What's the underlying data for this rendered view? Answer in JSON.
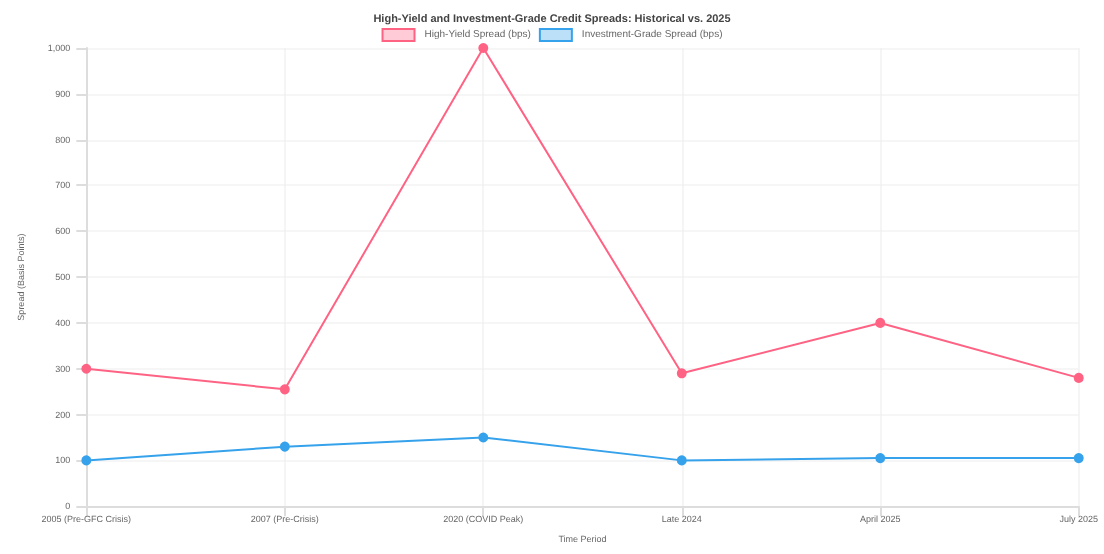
{
  "chart_data": {
    "type": "line",
    "title": "High-Yield and Investment-Grade Credit Spreads: Historical vs. 2025",
    "xlabel": "Time Period",
    "ylabel": "Spread (Basis Points)",
    "categories": [
      "2005 (Pre-GFC Crisis)",
      "2007 (Pre-Crisis)",
      "2020 (COVID Peak)",
      "Late 2024",
      "April 2025",
      "July 2025"
    ],
    "series": [
      {
        "name": "High-Yield Spread (bps)",
        "color": "#ff6384",
        "values": [
          300,
          255,
          1000,
          290,
          400,
          280
        ]
      },
      {
        "name": "Investment-Grade Spread (bps)",
        "color": "#36a2eb",
        "values": [
          100,
          130,
          150,
          100,
          105,
          105
        ]
      }
    ],
    "ylim": [
      0,
      1000
    ],
    "yticks": [
      0,
      100,
      200,
      300,
      400,
      500,
      600,
      700,
      800,
      900,
      {
        "value": 1000,
        "label": "1,000"
      }
    ],
    "grid": true,
    "legend": "top",
    "marker": "circle",
    "line_style": "solid"
  }
}
